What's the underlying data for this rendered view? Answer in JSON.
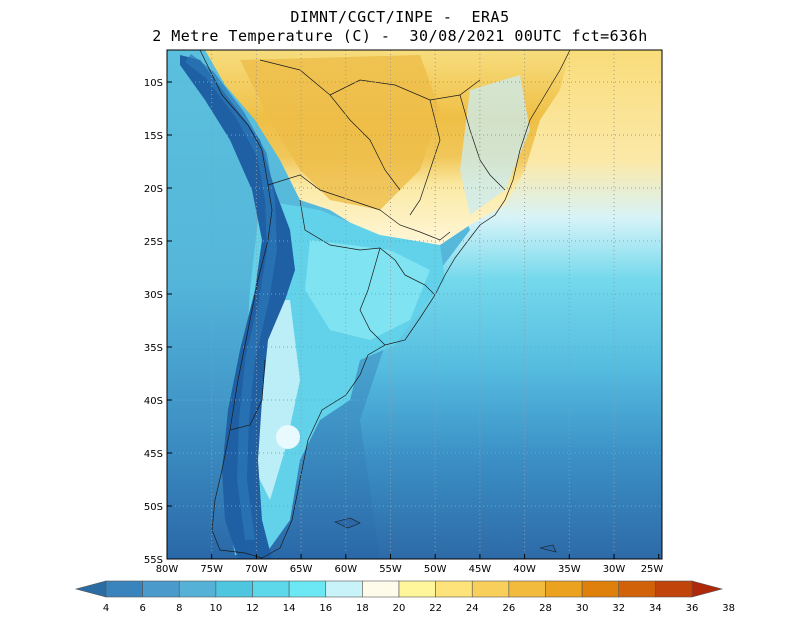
{
  "title_line1": "DIMNT/CGCT/INPE -  ERA5",
  "title_line2": "2 Metre Temperature (C) -  30/08/2021 00UTC fct=636h",
  "lat_labels": [
    "10S",
    "15S",
    "20S",
    "25S",
    "30S",
    "35S",
    "40S",
    "45S",
    "50S",
    "55S"
  ],
  "lon_labels": [
    "80W",
    "75W",
    "70W",
    "65W",
    "60W",
    "55W",
    "50W",
    "45W",
    "40W",
    "35W",
    "30W",
    "25W"
  ],
  "colorbar": {
    "labels": [
      "4",
      "6",
      "8",
      "10",
      "12",
      "14",
      "16",
      "18",
      "20",
      "22",
      "24",
      "26",
      "28",
      "30",
      "32",
      "34",
      "36",
      "38"
    ],
    "colors": [
      "#2b6ca3",
      "#3a84bd",
      "#4a9acb",
      "#56b1d6",
      "#4fc6e0",
      "#5dd7ea",
      "#6be8f4",
      "#c8f3f8",
      "#fffbea",
      "#fff59a",
      "#fde37a",
      "#f9cf5b",
      "#f2bb3d",
      "#eba21e",
      "#e0800c",
      "#d2620a",
      "#c1440a",
      "#b0280a"
    ]
  },
  "colors": {
    "ocean_deep": "#2f6fae",
    "ocean_mid": "#4aa3d3",
    "ocean_light": "#63c9e3",
    "cyan": "#7ee0f0",
    "land_warm": "#f6d266",
    "land_hot": "#eec04b",
    "andes_dark": "#1f5fa3"
  }
}
